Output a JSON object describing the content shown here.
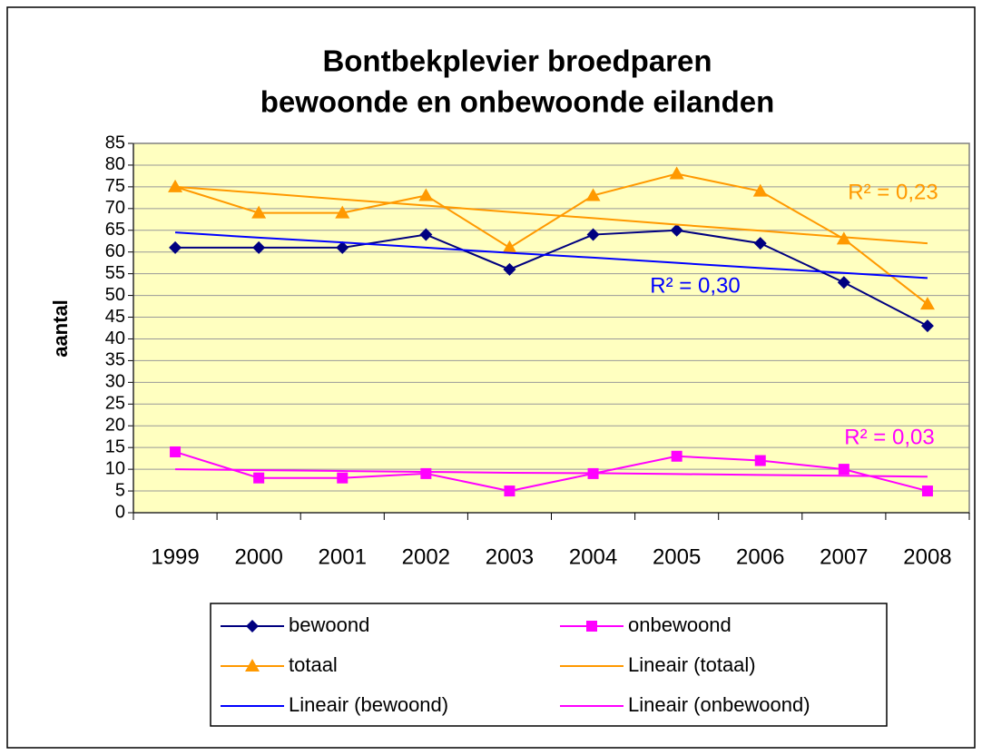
{
  "chart_data": {
    "type": "line",
    "title": [
      "Bontbekplevier broedparen",
      "bewoonde en onbewoonde eilanden"
    ],
    "y_label": "aantal",
    "categories": [
      "1999",
      "2000",
      "2001",
      "2002",
      "2003",
      "2004",
      "2005",
      "2006",
      "2007",
      "2008"
    ],
    "series": [
      {
        "name": "bewoond",
        "color": "#000080",
        "marker": "diamond",
        "values": [
          61,
          61,
          61,
          64,
          56,
          64,
          65,
          62,
          53,
          43
        ]
      },
      {
        "name": "onbewoond",
        "color": "#ff00ff",
        "marker": "square",
        "values": [
          14,
          8,
          8,
          9,
          5,
          9,
          13,
          12,
          10,
          5
        ]
      },
      {
        "name": "totaal",
        "color": "#ff9900",
        "marker": "triangle",
        "values": [
          75,
          69,
          69,
          73,
          61,
          73,
          78,
          74,
          63,
          48
        ]
      },
      {
        "name": "Lineair (totaal)",
        "color": "#ff9900",
        "marker": null,
        "values": [
          75,
          73.6,
          72.1,
          70.7,
          69.2,
          67.8,
          66.3,
          64.9,
          63.4,
          62
        ]
      },
      {
        "name": "Lineair (bewoond)",
        "color": "#0000ff",
        "marker": null,
        "values": [
          64.5,
          63.3,
          62.2,
          61.0,
          59.8,
          58.7,
          57.5,
          56.3,
          55.2,
          54
        ]
      },
      {
        "name": "Lineair (onbewoond)",
        "color": "#ff00ff",
        "marker": null,
        "values": [
          10,
          9.8,
          9.6,
          9.4,
          9.2,
          9.1,
          8.9,
          8.7,
          8.5,
          8.3
        ]
      }
    ],
    "annotations": [
      {
        "text": "R² = 0,23",
        "color": "#ff9900"
      },
      {
        "text": "R² = 0,30",
        "color": "#0000ff"
      },
      {
        "text": "R² = 0,03",
        "color": "#ff00ff"
      }
    ],
    "ylim": [
      0,
      85
    ],
    "yticks": [
      0,
      5,
      10,
      15,
      20,
      25,
      30,
      35,
      40,
      45,
      50,
      55,
      60,
      65,
      70,
      75,
      80,
      85
    ],
    "grid": true,
    "legend": "bottom"
  }
}
